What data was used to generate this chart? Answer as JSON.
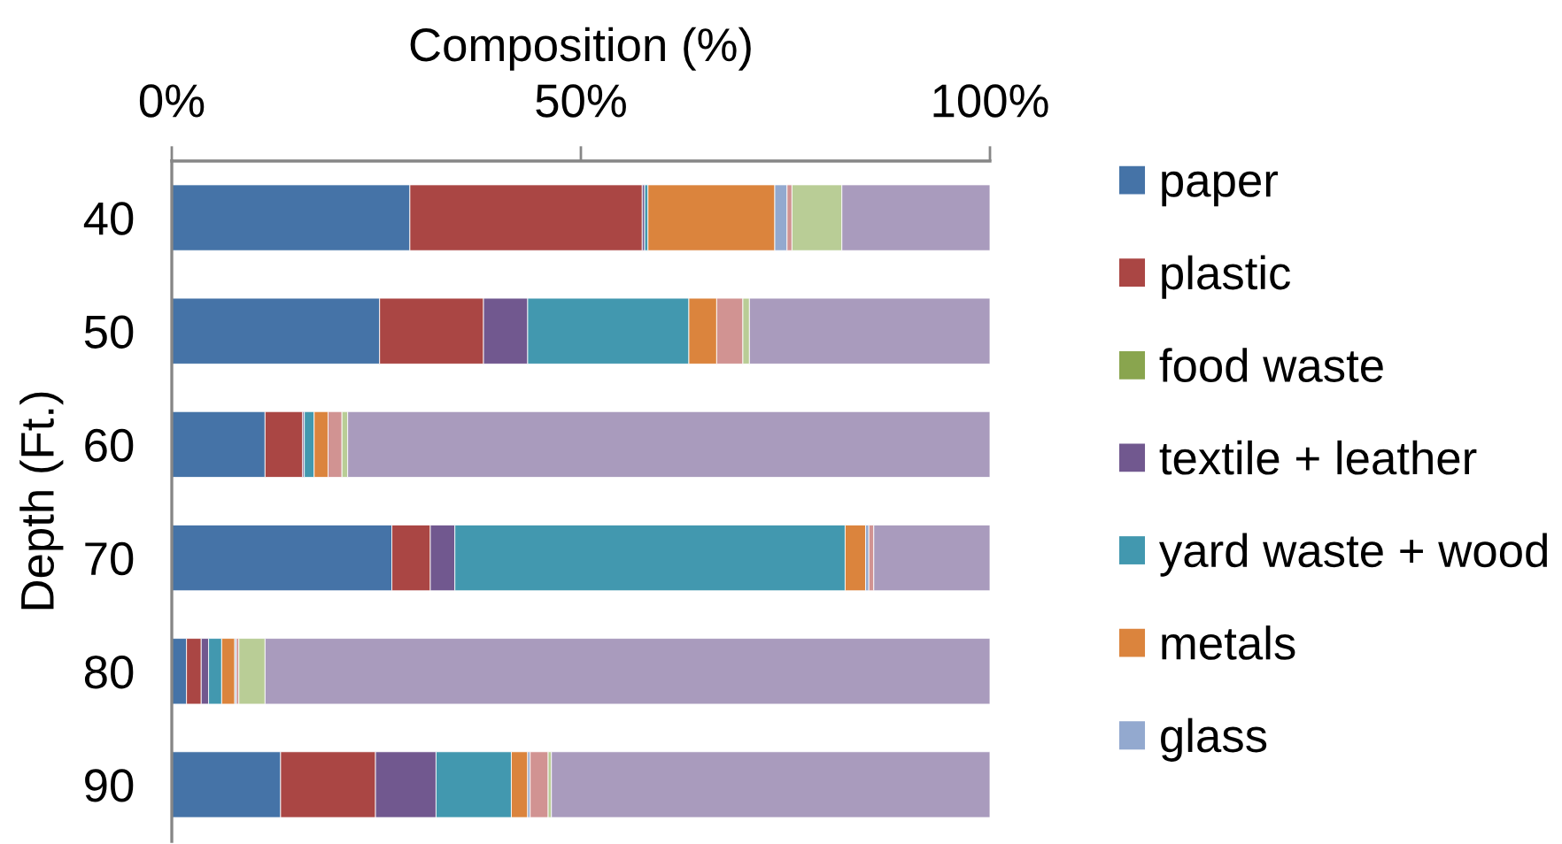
{
  "chart_data": {
    "type": "bar",
    "orientation": "horizontal",
    "stacked": true,
    "xlabel": "Composition (%)",
    "ylabel": "Depth (Ft.)",
    "categories": [
      "40",
      "50",
      "60",
      "70",
      "80",
      "90"
    ],
    "xlim": [
      0,
      100
    ],
    "xticks": [
      {
        "value": 0,
        "label": "0%"
      },
      {
        "value": 50,
        "label": "50%"
      },
      {
        "value": 100,
        "label": "100%"
      }
    ],
    "legend": "right",
    "series": [
      {
        "name": "paper",
        "color": "#4573a7",
        "values": [
          29.1,
          25.4,
          11.4,
          26.9,
          1.8,
          13.3
        ]
      },
      {
        "name": "plastic",
        "color": "#aa4644",
        "values": [
          28.4,
          12.7,
          4.6,
          4.7,
          1.8,
          11.6
        ]
      },
      {
        "name": "food waste",
        "color": "#89a54e",
        "values": [
          0,
          0,
          0,
          0,
          0,
          0
        ]
      },
      {
        "name": "textile + leather",
        "color": "#71588f",
        "values": [
          0.3,
          5.4,
          0.2,
          3.0,
          0.9,
          7.4
        ]
      },
      {
        "name": "yard waste + wood",
        "color": "#4298af",
        "values": [
          0.4,
          19.7,
          1.2,
          47.7,
          1.6,
          9.2
        ]
      },
      {
        "name": "metals",
        "color": "#db843d",
        "values": [
          15.5,
          3.4,
          1.7,
          2.5,
          1.6,
          2.0
        ]
      },
      {
        "name": "glass",
        "color": "#93a9cf",
        "values": [
          1.5,
          0,
          0,
          0.4,
          0.2,
          0.3
        ]
      },
      {
        "color": "#d19392",
        "values": [
          0.6,
          3.2,
          1.7,
          0.6,
          0.3,
          2.2
        ]
      },
      {
        "color": "#b9cd96",
        "values": [
          6.1,
          0.8,
          0.7,
          0,
          3.2,
          0.4
        ]
      },
      {
        "color": "#a99bbd",
        "values": [
          18.1,
          29.4,
          78.5,
          14.2,
          88.6,
          53.6
        ]
      }
    ]
  }
}
